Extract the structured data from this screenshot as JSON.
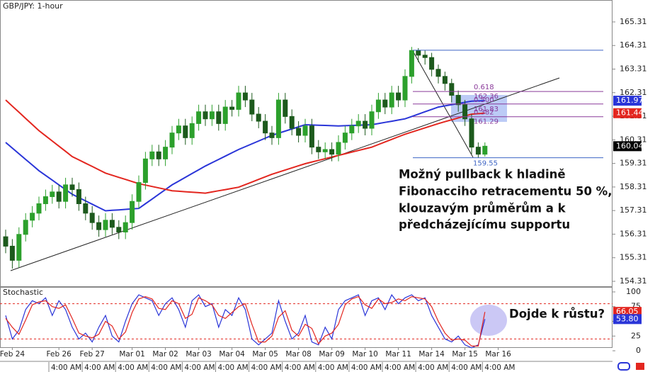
{
  "chart_data": [
    {
      "type": "candlestick",
      "title": "GBP/JPY: 1-hour",
      "categories": [
        null,
        "Feb 24",
        null,
        null,
        null,
        null,
        null,
        null,
        "Feb 26",
        null,
        null,
        null,
        null,
        "Feb 27",
        null,
        null,
        null,
        null,
        null,
        "Mar 01",
        null,
        null,
        null,
        null,
        "Mar 02",
        null,
        null,
        null,
        null,
        "Mar 03",
        null,
        null,
        null,
        null,
        "Mar 04",
        null,
        null,
        null,
        null,
        "Mar 05",
        null,
        null,
        null,
        null,
        "Mar 08",
        null,
        null,
        null,
        null,
        "Mar 09",
        null,
        null,
        null,
        null,
        "Mar 10",
        null,
        null,
        null,
        null,
        "Mar 11",
        null,
        null,
        null,
        null,
        "Mar 14",
        null,
        null,
        null,
        null,
        "Mar 15",
        null,
        null,
        null,
        null,
        "Mar 16"
      ],
      "time_labels": [
        "4:00 AM",
        "4:00 AM",
        "4:00 AM",
        "4:00 AM",
        "4:00 AM",
        "4:00 AM",
        "4:00 AM",
        "4:00 AM",
        "4:00 AM",
        "4:00 AM",
        "4:00 AM",
        "4:00 AM",
        "4:00 AM",
        "4:00 AM"
      ],
      "open": [
        156.2,
        155.8,
        155.2,
        156.3,
        156.9,
        157.2,
        157.6,
        157.9,
        158.1,
        157.7,
        158.4,
        158.2,
        157.6,
        157.2,
        156.8,
        156.5,
        156.9,
        156.6,
        156.4,
        156.8,
        157.7,
        158.5,
        159.5,
        159.8,
        159.5,
        160.0,
        160.6,
        160.9,
        160.4,
        161.0,
        161.5,
        161.2,
        161.5,
        161.0,
        161.7,
        161.6,
        162.3,
        162.0,
        161.4,
        161.1,
        160.6,
        160.4,
        162.0,
        161.3,
        160.8,
        160.5,
        160.9,
        160.0,
        159.8,
        159.9,
        159.7,
        160.2,
        160.6,
        160.9,
        161.1,
        160.8,
        161.5,
        162.0,
        161.7,
        162.3,
        162.0,
        163.0,
        164.1,
        163.9,
        163.8,
        163.3,
        163.0,
        162.7,
        162.2,
        161.8,
        161.2,
        160.0,
        159.7,
        null,
        null
      ],
      "high": [
        156.5,
        156.1,
        156.6,
        157.2,
        157.5,
        157.9,
        158.2,
        158.4,
        158.4,
        158.7,
        158.7,
        158.5,
        157.9,
        157.5,
        157.1,
        157.2,
        157.2,
        156.9,
        157.1,
        158.0,
        158.8,
        159.8,
        160.1,
        160.1,
        160.3,
        160.9,
        161.2,
        161.2,
        161.3,
        161.8,
        161.8,
        161.8,
        161.8,
        162.0,
        162.0,
        162.6,
        162.6,
        162.3,
        161.7,
        161.4,
        160.9,
        162.3,
        162.3,
        161.6,
        161.1,
        161.2,
        161.2,
        160.3,
        160.2,
        160.2,
        160.5,
        160.9,
        161.2,
        161.4,
        161.4,
        161.8,
        162.3,
        162.3,
        162.6,
        162.6,
        163.3,
        164.25,
        164.2,
        164.1,
        164.0,
        163.5,
        163.2,
        162.9,
        162.4,
        162.0,
        161.4,
        160.2,
        160.2,
        null,
        null
      ],
      "low": [
        155.5,
        154.85,
        154.9,
        156.0,
        156.6,
        156.9,
        157.3,
        157.6,
        157.4,
        157.4,
        157.9,
        157.3,
        156.9,
        156.5,
        156.2,
        156.2,
        156.3,
        156.1,
        156.1,
        156.5,
        157.4,
        158.2,
        159.2,
        159.2,
        159.2,
        159.7,
        160.3,
        160.1,
        160.1,
        160.7,
        160.9,
        160.9,
        160.7,
        160.7,
        161.3,
        161.3,
        161.7,
        161.1,
        160.8,
        160.3,
        160.1,
        160.1,
        161.0,
        160.5,
        160.2,
        160.2,
        159.7,
        159.5,
        159.5,
        159.4,
        159.4,
        159.9,
        160.3,
        160.6,
        160.5,
        160.5,
        161.2,
        161.4,
        161.4,
        161.7,
        161.7,
        162.7,
        163.6,
        163.5,
        163.0,
        162.7,
        162.4,
        161.9,
        161.5,
        160.9,
        159.7,
        159.55,
        159.6,
        null,
        null
      ],
      "close": [
        155.8,
        155.2,
        156.3,
        156.9,
        157.2,
        157.6,
        157.9,
        158.1,
        157.7,
        158.4,
        158.2,
        157.6,
        157.2,
        156.8,
        156.5,
        156.9,
        156.6,
        156.4,
        156.8,
        157.7,
        158.5,
        159.5,
        159.8,
        159.5,
        160.0,
        160.6,
        160.9,
        160.4,
        161.0,
        161.5,
        161.2,
        161.5,
        161.0,
        161.7,
        161.6,
        162.3,
        162.0,
        161.4,
        161.1,
        160.6,
        160.4,
        162.0,
        161.3,
        160.8,
        160.5,
        160.9,
        160.0,
        159.8,
        159.9,
        159.7,
        160.2,
        160.6,
        160.9,
        161.1,
        160.8,
        161.5,
        162.0,
        161.7,
        162.3,
        162.0,
        163.0,
        164.1,
        163.9,
        163.8,
        163.3,
        163.0,
        162.7,
        162.2,
        161.8,
        161.2,
        160.0,
        159.7,
        160.04,
        null,
        null
      ],
      "up_color": "#2ca02c",
      "down_color": "#1d5a1d",
      "last_color": "#000000",
      "moving_averages": [
        {
          "color": "#2a35d8",
          "values": [
            160.2,
            159.96,
            159.72,
            159.48,
            159.24,
            159.0,
            158.8,
            158.6,
            158.4,
            158.2,
            158.0,
            157.86,
            157.72,
            157.58,
            157.44,
            157.3,
            157.32,
            157.34,
            157.36,
            157.38,
            157.4,
            157.6,
            157.8,
            158.0,
            158.2,
            158.4,
            158.56,
            158.72,
            158.88,
            159.04,
            159.2,
            159.34,
            159.48,
            159.62,
            159.76,
            159.9,
            160.02,
            160.14,
            160.26,
            160.38,
            160.5,
            160.59,
            160.68,
            160.77,
            160.86,
            160.95,
            160.94,
            160.93,
            160.92,
            160.91,
            160.9,
            160.91,
            160.92,
            160.93,
            160.94,
            160.95,
            161.0,
            161.05,
            161.1,
            161.15,
            161.2,
            161.3,
            161.4,
            161.5,
            161.6,
            161.7,
            161.75,
            161.8,
            161.85,
            161.9,
            161.95,
            161.96,
            161.97,
            null,
            null
          ]
        },
        {
          "color": "#e3261f",
          "values": [
            162.0,
            161.74,
            161.48,
            161.22,
            160.96,
            160.7,
            160.48,
            160.26,
            160.04,
            159.82,
            159.6,
            159.46,
            159.32,
            159.18,
            159.04,
            158.9,
            158.81,
            158.72,
            158.63,
            158.54,
            158.45,
            158.39,
            158.33,
            158.27,
            158.21,
            158.15,
            158.13,
            158.11,
            158.09,
            158.07,
            158.05,
            158.1,
            158.15,
            158.2,
            158.25,
            158.3,
            158.41,
            158.52,
            158.63,
            158.74,
            158.85,
            158.94,
            159.03,
            159.12,
            159.21,
            159.3,
            159.37,
            159.44,
            159.51,
            159.58,
            159.65,
            159.72,
            159.79,
            159.86,
            159.93,
            160.0,
            160.11,
            160.22,
            160.33,
            160.44,
            160.55,
            160.64,
            160.73,
            160.82,
            160.91,
            161.0,
            161.08,
            161.16,
            161.24,
            161.32,
            161.4,
            161.42,
            161.44,
            null,
            null
          ]
        }
      ],
      "fibonacci": {
        "high": 164.11,
        "low": 159.55,
        "line_color": "#3d64c4",
        "level_color": "#8a3a9a",
        "levels": [
          {
            "ratio": "0.618",
            "price": 162.36
          },
          {
            "ratio": "0.500",
            "price": 161.83
          },
          {
            "ratio": "0.382",
            "price": 161.29
          }
        ]
      },
      "annotation": [
        "Možný pullback k hladině",
        "Fibonacciho retracementu 50 %,",
        "klouzavým průměrům a k",
        "předcházejícímu supportu"
      ],
      "ylim": [
        154.07,
        166.24
      ],
      "yticks": [
        165.31,
        164.31,
        163.31,
        162.31,
        161.31,
        160.31,
        159.31,
        158.31,
        157.31,
        156.31,
        155.31,
        154.31
      ]
    },
    {
      "type": "line",
      "title": "Stochastic",
      "series": [
        {
          "color": "#2a35d8",
          "value_label": "53.80",
          "values": [
            60,
            20,
            35,
            70,
            85,
            80,
            90,
            60,
            85,
            70,
            40,
            20,
            30,
            15,
            40,
            60,
            25,
            15,
            50,
            80,
            95,
            90,
            85,
            60,
            80,
            90,
            70,
            40,
            85,
            95,
            75,
            80,
            40,
            70,
            60,
            90,
            70,
            20,
            10,
            20,
            30,
            85,
            50,
            20,
            30,
            60,
            15,
            10,
            40,
            20,
            70,
            85,
            90,
            95,
            60,
            85,
            90,
            70,
            95,
            80,
            90,
            95,
            85,
            90,
            60,
            40,
            20,
            15,
            25,
            10,
            5,
            10,
            53.8,
            null,
            null
          ]
        },
        {
          "color": "#e3261f",
          "value_label": "66.05",
          "values": [
            55,
            40,
            28,
            52,
            78,
            83,
            85,
            75,
            72,
            78,
            55,
            30,
            25,
            22,
            28,
            50,
            42,
            20,
            32,
            65,
            88,
            92,
            88,
            72,
            70,
            85,
            80,
            55,
            62,
            90,
            85,
            78,
            60,
            55,
            65,
            75,
            80,
            45,
            15,
            15,
            25,
            57,
            68,
            35,
            25,
            45,
            38,
            12,
            25,
            30,
            45,
            78,
            88,
            92,
            78,
            72,
            88,
            80,
            82,
            88,
            85,
            92,
            90,
            88,
            75,
            50,
            30,
            18,
            20,
            18,
            8,
            8,
            66.05,
            null,
            null
          ]
        }
      ],
      "levels": [
        80,
        20
      ],
      "level_color": "#e3261f",
      "annotation": "Dojde k růstu?",
      "ylim": [
        -12,
        108.4
      ],
      "yticks": [
        100,
        75,
        50,
        25,
        0
      ]
    }
  ]
}
